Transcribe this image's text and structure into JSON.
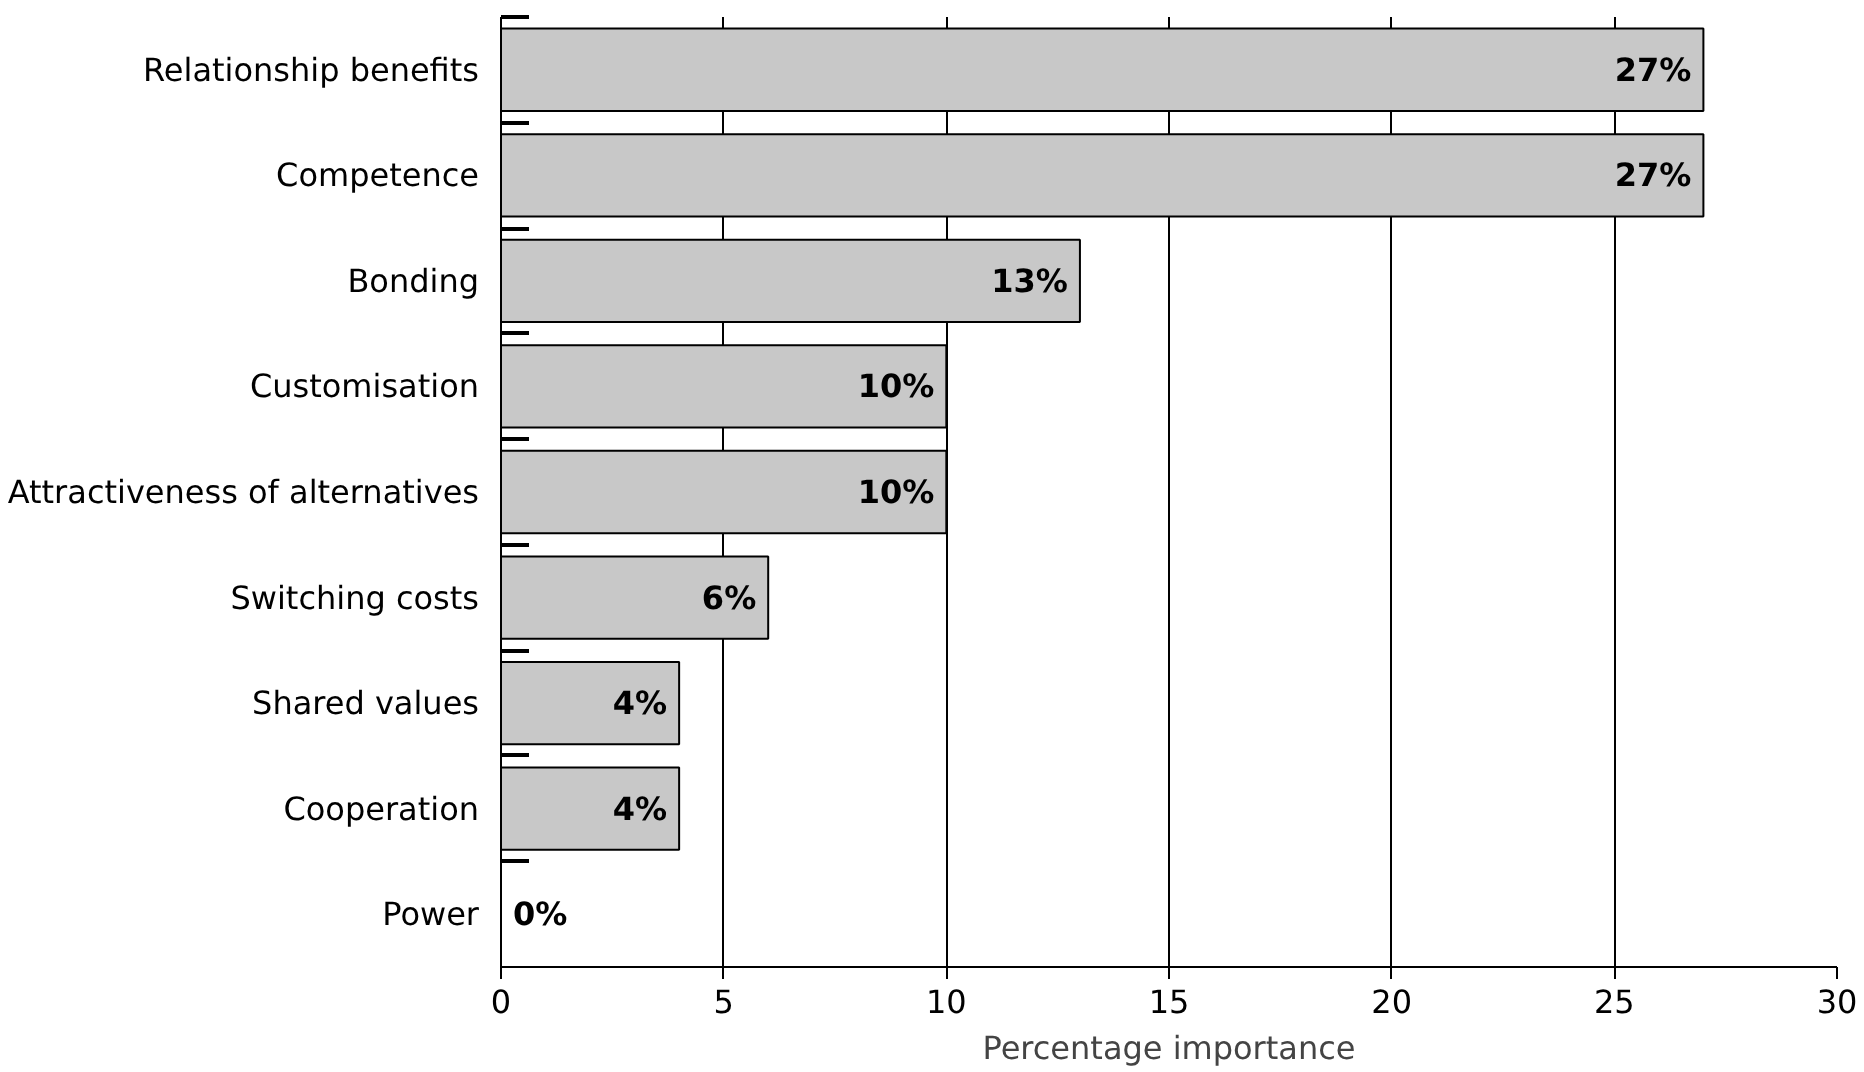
{
  "chart_data": {
    "type": "bar",
    "orientation": "horizontal",
    "xlabel": "Percentage importance",
    "categories": [
      "Relationship benefits",
      "Competence",
      "Bonding",
      "Customisation",
      "Attractiveness of alternatives",
      "Switching costs",
      "Shared values",
      "Cooperation",
      "Power"
    ],
    "values": [
      27,
      27,
      13,
      10,
      10,
      6,
      4,
      4,
      0
    ],
    "value_labels": [
      "27%",
      "27%",
      "13%",
      "10%",
      "10%",
      "6%",
      "4%",
      "4%",
      "0%"
    ],
    "color": "#c8c8c8",
    "xlim": [
      0,
      30
    ],
    "xticks": [
      0,
      5,
      10,
      15,
      20,
      25,
      30
    ],
    "grid": "x"
  }
}
